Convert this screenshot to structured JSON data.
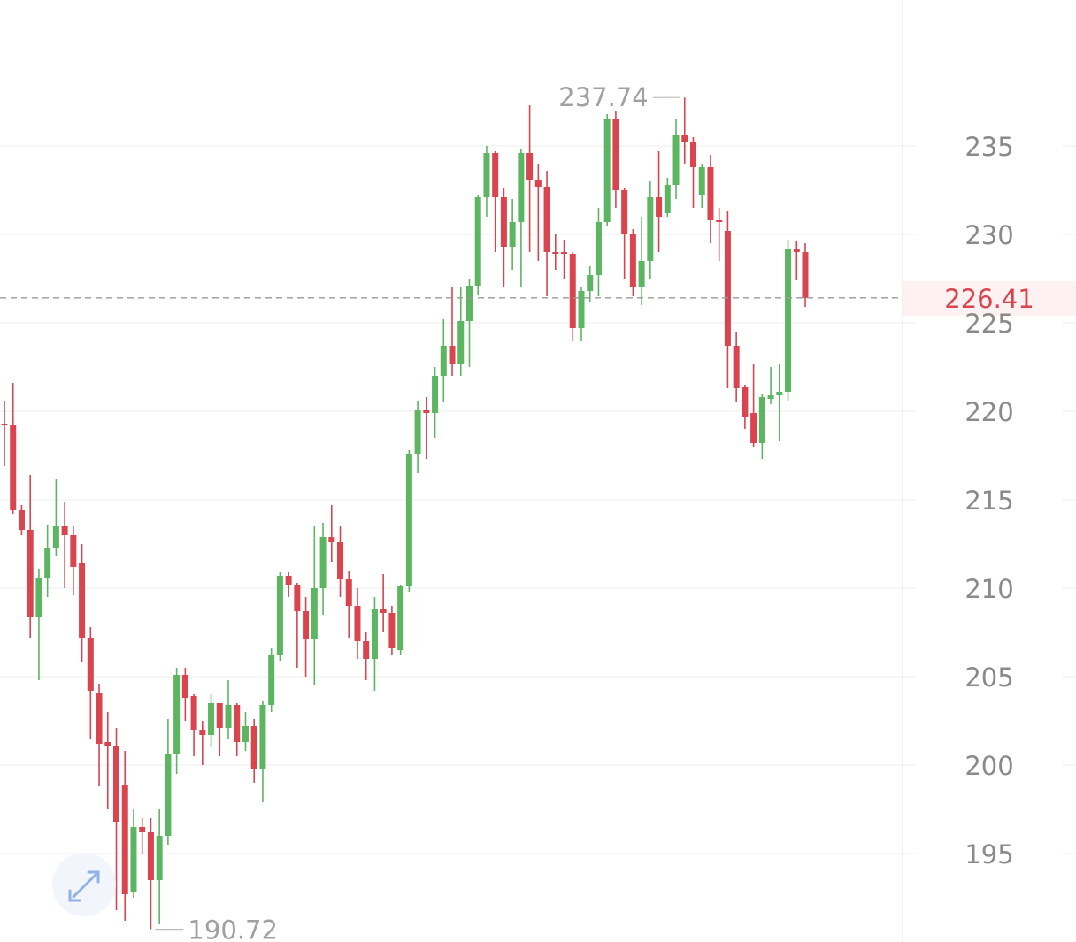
{
  "chart_data": {
    "type": "candlestick",
    "ylim": [
      190.0,
      243.25
    ],
    "yticks": [
      195,
      200,
      205,
      210,
      215,
      220,
      225,
      230,
      235
    ],
    "grid": true,
    "up_color": "#5cb561",
    "down_color": "#d9444f",
    "open": [
      219.3,
      219.2,
      214.4,
      213.3,
      208.4,
      210.6,
      212.3,
      213.5,
      213.0,
      211.4,
      207.2,
      204.1,
      201.3,
      201.1,
      198.9,
      192.8,
      196.5,
      196.2,
      193.5,
      196.0,
      200.6,
      205.1,
      203.9,
      202.0,
      201.7,
      203.5,
      202.1,
      203.4,
      201.3,
      202.2,
      199.8,
      203.4,
      206.2,
      210.7,
      210.2,
      208.7,
      207.1,
      210.0,
      212.9,
      212.6,
      210.5,
      209.0,
      207.0,
      206.0,
      208.8,
      208.6,
      206.5,
      210.1,
      217.6,
      220.1,
      219.9,
      222.0,
      223.7,
      222.7,
      225.1,
      227.1,
      232.1,
      234.6,
      232.1,
      229.3,
      230.7,
      234.6,
      233.1,
      232.7,
      229.0,
      229.0,
      228.9,
      224.7,
      226.8,
      227.7,
      230.7,
      236.5,
      232.5,
      230.0,
      227.0,
      228.5,
      232.1,
      231.2,
      232.8,
      235.6,
      235.2,
      232.2,
      233.8,
      230.8,
      230.2,
      223.7,
      221.4,
      219.9,
      218.2,
      220.7,
      220.9,
      221.1,
      229.2,
      229.0
    ],
    "high": [
      220.6,
      221.6,
      214.7,
      216.4,
      211.1,
      213.6,
      216.2,
      214.9,
      213.5,
      212.5,
      207.8,
      204.6,
      203.0,
      202.1,
      200.8,
      197.5,
      197.0,
      197.0,
      197.5,
      202.6,
      205.5,
      205.5,
      204.0,
      202.5,
      204.0,
      203.5,
      204.8,
      203.5,
      203.0,
      202.6,
      203.6,
      206.6,
      210.9,
      210.9,
      210.3,
      209.5,
      213.5,
      213.7,
      214.7,
      213.5,
      211.0,
      210.0,
      207.5,
      209.5,
      210.8,
      209.0,
      210.2,
      217.8,
      220.6,
      220.8,
      222.5,
      225.2,
      227.0,
      227.0,
      227.5,
      232.2,
      235.0,
      234.7,
      232.6,
      232.0,
      234.8,
      237.3,
      234.0,
      233.6,
      230.0,
      229.7,
      229.0,
      227.0,
      228.2,
      231.5,
      236.8,
      237.0,
      232.6,
      230.3,
      231.0,
      233.0,
      234.7,
      233.2,
      236.5,
      237.74,
      235.5,
      234.0,
      234.5,
      231.5,
      231.3,
      224.5,
      221.5,
      222.7,
      221.0,
      222.5,
      222.7,
      229.7,
      229.6,
      229.5
    ],
    "low": [
      216.9,
      214.2,
      213.0,
      207.2,
      204.8,
      209.5,
      211.8,
      210.0,
      209.6,
      205.8,
      201.5,
      198.8,
      197.5,
      191.8,
      191.2,
      192.5,
      195.0,
      190.72,
      191.0,
      195.5,
      199.5,
      202.5,
      200.5,
      200.0,
      201.0,
      200.5,
      201.5,
      200.5,
      200.8,
      199.0,
      197.9,
      203.0,
      205.9,
      209.5,
      205.5,
      205.0,
      204.5,
      208.5,
      211.5,
      209.5,
      207.2,
      206.0,
      204.8,
      204.2,
      207.5,
      206.2,
      206.2,
      209.8,
      216.5,
      217.3,
      218.5,
      220.5,
      222.0,
      222.0,
      222.5,
      226.6,
      231.0,
      229.0,
      227.0,
      228.0,
      227.0,
      229.0,
      228.5,
      226.5,
      228.0,
      227.5,
      224.0,
      224.0,
      226.2,
      226.5,
      230.5,
      231.5,
      227.5,
      226.5,
      226.0,
      227.5,
      229.0,
      231.0,
      232.0,
      234.0,
      231.5,
      231.5,
      229.5,
      228.5,
      221.3,
      220.5,
      219.0,
      218.0,
      217.3,
      220.4,
      218.3,
      220.6,
      227.4,
      225.9
    ],
    "close": [
      219.2,
      214.4,
      213.3,
      208.4,
      210.6,
      212.3,
      213.5,
      213.0,
      211.2,
      207.2,
      204.2,
      201.2,
      201.1,
      196.8,
      192.7,
      196.5,
      196.2,
      193.5,
      196.0,
      200.6,
      205.1,
      203.8,
      202.0,
      201.7,
      203.5,
      202.1,
      203.4,
      201.3,
      202.2,
      199.8,
      203.4,
      206.2,
      210.7,
      210.2,
      208.7,
      207.1,
      210.0,
      212.9,
      212.6,
      210.5,
      209.0,
      207.0,
      206.0,
      208.8,
      208.6,
      206.6,
      210.1,
      217.6,
      220.1,
      219.9,
      222.0,
      223.7,
      222.7,
      225.1,
      227.1,
      232.1,
      234.6,
      232.1,
      229.3,
      230.7,
      234.6,
      233.1,
      232.7,
      229.0,
      228.9,
      228.9,
      224.7,
      226.8,
      227.7,
      230.7,
      236.5,
      232.5,
      230.0,
      227.0,
      228.5,
      232.1,
      231.0,
      232.8,
      235.6,
      235.2,
      233.8,
      233.8,
      230.8,
      230.7,
      223.7,
      221.3,
      219.7,
      218.2,
      220.8,
      220.9,
      221.1,
      229.2,
      229.0,
      226.41
    ]
  }
}
